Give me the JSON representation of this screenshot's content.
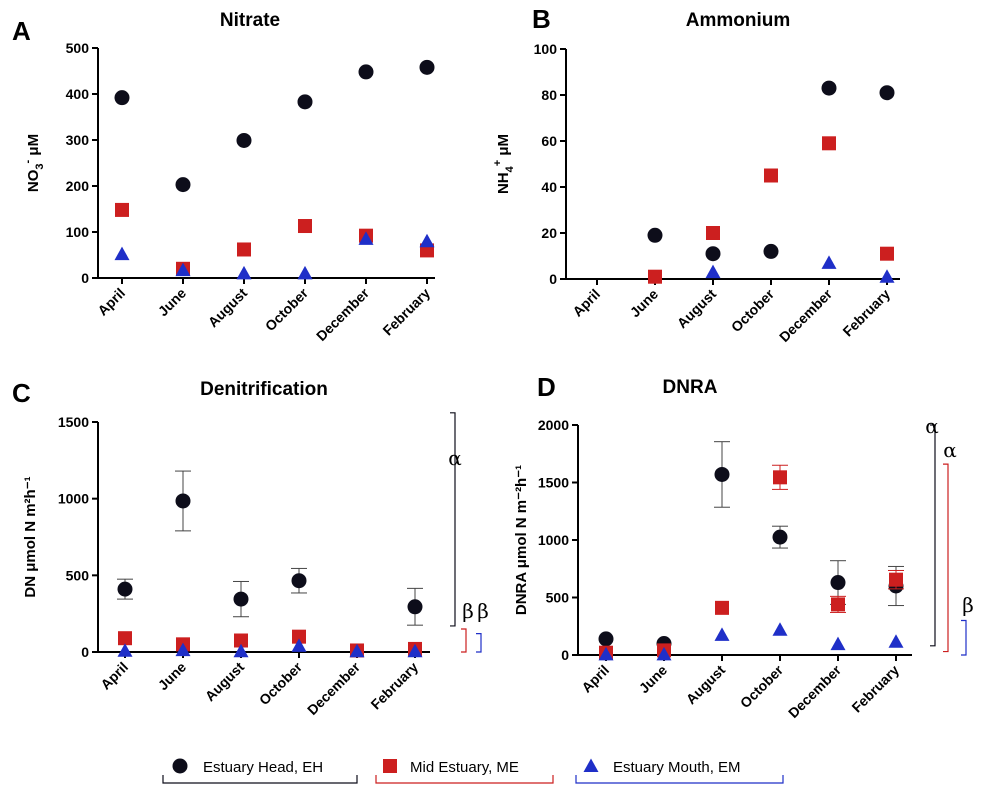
{
  "colors": {
    "EH": "#0d0d1a",
    "ME": "#cc1f1f",
    "EM": "#1f2fc8",
    "axis": "#000000",
    "err": "#444444"
  },
  "legend": [
    {
      "key": "EH",
      "label": "Estuary Head, EH",
      "marker": "circle"
    },
    {
      "key": "ME",
      "label": "Mid Estuary, ME",
      "marker": "square"
    },
    {
      "key": "EM",
      "label": "Estuary Mouth, EM",
      "marker": "triangle"
    }
  ],
  "chart_data": [
    {
      "panel": "A",
      "title": "Nitrate",
      "type": "scatter",
      "ylabel_main": "NO",
      "ylabel_sub": "3",
      "ylabel_sup": "-",
      "ylabel_rest": " μM",
      "categories": [
        "April",
        "June",
        "August",
        "October",
        "December",
        "February"
      ],
      "ylim": [
        0,
        500
      ],
      "yticks": [
        0,
        100,
        200,
        300,
        400,
        500
      ],
      "series": [
        {
          "key": "EH",
          "values": [
            392,
            203,
            299,
            383,
            448,
            458
          ]
        },
        {
          "key": "ME",
          "values": [
            148,
            20,
            62,
            113,
            92,
            60
          ]
        },
        {
          "key": "EM",
          "values": [
            52,
            17,
            10,
            10,
            85,
            80
          ]
        }
      ],
      "brackets": []
    },
    {
      "panel": "B",
      "title": "Ammonium",
      "type": "scatter",
      "ylabel_main": "NH",
      "ylabel_sub": "4",
      "ylabel_sup": "+",
      "ylabel_rest": " μM",
      "categories": [
        "April",
        "June",
        "August",
        "October",
        "December",
        "February"
      ],
      "ylim": [
        0,
        100
      ],
      "yticks": [
        0,
        20,
        40,
        60,
        80,
        100
      ],
      "series": [
        {
          "key": "EH",
          "values": [
            null,
            19,
            11,
            12,
            83,
            81
          ]
        },
        {
          "key": "ME",
          "values": [
            null,
            1,
            20,
            45,
            59,
            11
          ]
        },
        {
          "key": "EM",
          "values": [
            null,
            null,
            3,
            null,
            7,
            1
          ]
        }
      ],
      "brackets": []
    },
    {
      "panel": "C",
      "title": "Denitrification",
      "type": "scatter",
      "ylabel_full": "DN  μmol N m²h⁻¹",
      "categories": [
        "April",
        "June",
        "August",
        "October",
        "December",
        "February"
      ],
      "ylim": [
        0,
        1500
      ],
      "yticks": [
        0,
        500,
        1000,
        1500
      ],
      "series": [
        {
          "key": "EH",
          "values": [
            410,
            985,
            345,
            465,
            null,
            295
          ],
          "errors": [
            65,
            195,
            115,
            80,
            null,
            120
          ]
        },
        {
          "key": "ME",
          "values": [
            90,
            50,
            75,
            100,
            10,
            20
          ],
          "errors": [
            null,
            null,
            null,
            null,
            null,
            null
          ]
        },
        {
          "key": "EM",
          "values": [
            8,
            12,
            5,
            40,
            5,
            5
          ],
          "errors": [
            null,
            null,
            null,
            null,
            null,
            null
          ]
        }
      ],
      "brackets": [
        {
          "key": "EH",
          "symbol": "α",
          "from": 170,
          "to": 1560
        },
        {
          "key": "ME",
          "symbol": "β",
          "from": 0,
          "to": 150
        },
        {
          "key": "EM",
          "symbol": "β",
          "from": 0,
          "to": 120
        }
      ]
    },
    {
      "panel": "D",
      "title": "DNRA",
      "type": "scatter",
      "ylabel_full": "DNRA μmol N m⁻²h⁻¹",
      "categories": [
        "April",
        "June",
        "August",
        "October",
        "December",
        "February"
      ],
      "ylim": [
        0,
        2000
      ],
      "yticks": [
        0,
        500,
        1000,
        1500,
        2000
      ],
      "series": [
        {
          "key": "EH",
          "values": [
            140,
            100,
            1570,
            1025,
            630,
            600
          ],
          "errors": [
            null,
            null,
            285,
            95,
            190,
            170
          ]
        },
        {
          "key": "ME",
          "values": [
            20,
            40,
            410,
            1545,
            440,
            655
          ],
          "errors": [
            null,
            null,
            null,
            105,
            70,
            80
          ]
        },
        {
          "key": "EM",
          "values": [
            5,
            5,
            175,
            220,
            95,
            115
          ],
          "errors": [
            null,
            null,
            null,
            null,
            null,
            null
          ]
        }
      ],
      "brackets": [
        {
          "key": "EH",
          "symbol": "α",
          "from": 80,
          "to": 2000
        },
        {
          "key": "ME",
          "symbol": "α",
          "from": 30,
          "to": 1660
        },
        {
          "key": "EM",
          "symbol": "β",
          "from": 0,
          "to": 300
        }
      ]
    }
  ]
}
